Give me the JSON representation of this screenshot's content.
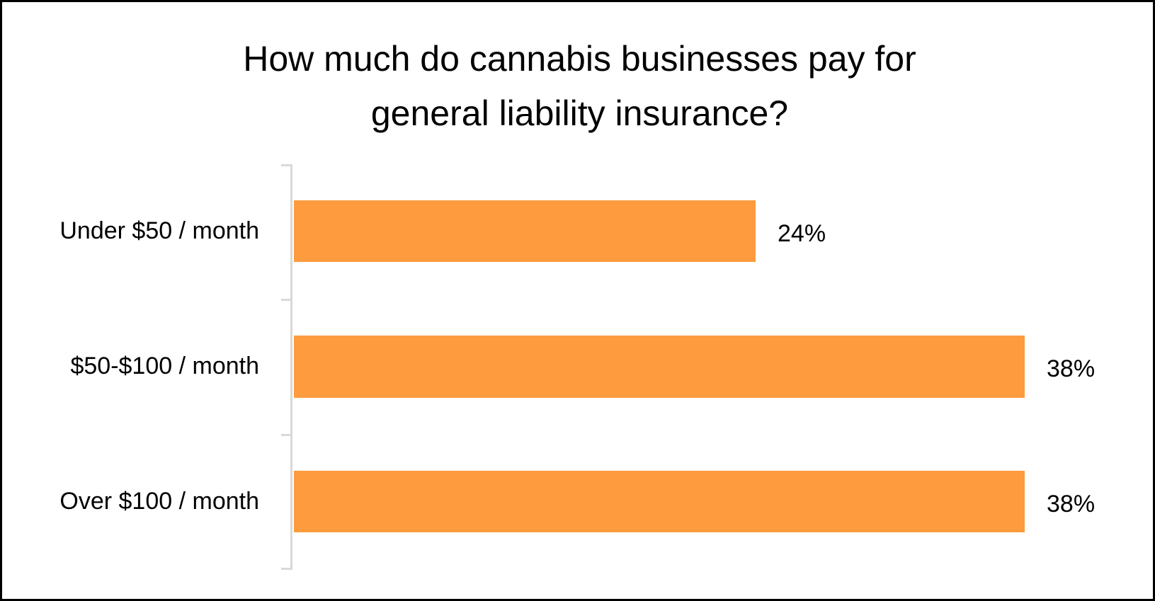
{
  "chart_data": {
    "type": "bar",
    "orientation": "horizontal",
    "title": "How much do cannabis businesses pay for general liability insurance?",
    "title_lines": [
      "How much do cannabis businesses pay for",
      "general liability insurance?"
    ],
    "categories": [
      "Under $50 / month",
      "$50-$100 / month",
      "Over $100 / month"
    ],
    "values": [
      24,
      38,
      38
    ],
    "value_labels": [
      "24%",
      "38%",
      "38%"
    ],
    "xlabel": "",
    "ylabel": "",
    "xlim": [
      0,
      38
    ],
    "grid": false,
    "legend": null,
    "bar_color": "#fd9b3e"
  }
}
